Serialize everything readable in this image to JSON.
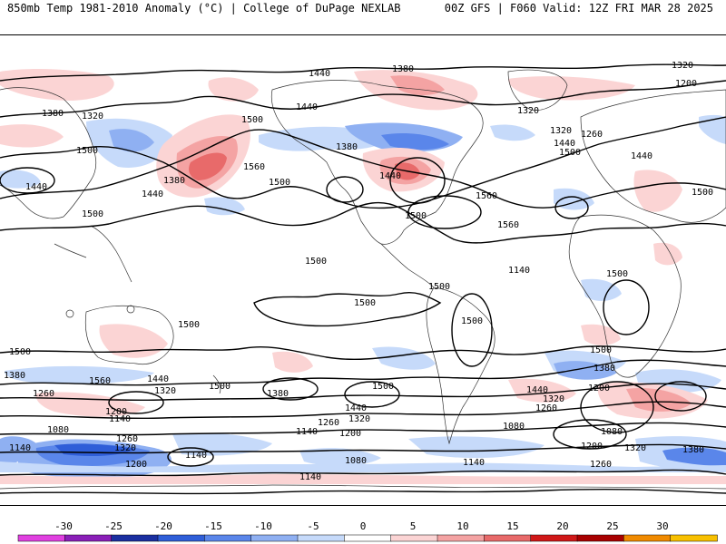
{
  "header": {
    "left_title": "850mb Temp 1981-2010 Anomaly (°C) | College of DuPage NEXLAB",
    "right_title": "00Z GFS | F060 Valid: 12Z FRI MAR 28 2025"
  },
  "colorbar": {
    "ticks": [
      "-30",
      "-25",
      "-20",
      "-15",
      "-10",
      "-5",
      "0",
      "5",
      "10",
      "15",
      "20",
      "25",
      "30"
    ],
    "colors": [
      "#e040e0",
      "#8a1fb8",
      "#1a2fa0",
      "#2f5ed8",
      "#5a86ea",
      "#8fb0f2",
      "#c6dafa",
      "#ffffff",
      "#fbd4d4",
      "#f4a3a3",
      "#e86a6a",
      "#d01818",
      "#a80000",
      "#f08a00",
      "#f8c000"
    ]
  },
  "contour_labels": {
    "l1440a": "1440",
    "l1380a": "1380",
    "l1320a": "1320",
    "l1380b": "1380",
    "l1500a": "1500",
    "l1440b": "1440",
    "l1380c": "1380",
    "l1440c": "1440",
    "l1500b": "1500",
    "l1560a": "1560",
    "l1500c": "1500",
    "l1500d": "1500",
    "l1440d": "1440",
    "l1380d": "1380",
    "l1320b": "1320",
    "l1440e": "1440",
    "l1500e": "1500",
    "l1560b": "1560",
    "l1560c": "1560",
    "l1320c": "1320",
    "l1260a": "1260",
    "l1440f": "1440",
    "l1500f": "1500",
    "l1500g": "1500",
    "l1320d": "1320",
    "l1200a": "1200",
    "l1500h": "1500",
    "l1500i": "1500",
    "l1500j": "1500",
    "l1500k": "1500",
    "l1500l": "1500",
    "l1500m": "1500",
    "l1500n": "1500",
    "l1380e": "1380",
    "l1560d": "1560",
    "l1440g": "1440",
    "l1320e": "1320",
    "l1260b": "1260",
    "l1200b": "1200",
    "l1140a": "1140",
    "l1500o": "1500",
    "l1380f": "1380",
    "l1440h": "1440",
    "l1320f": "1320",
    "l1260c": "1260",
    "l1140b": "1140",
    "l1200c": "1200",
    "l1500p": "1500",
    "l1440i": "1440",
    "l1320g": "1320",
    "l1260d": "1260",
    "l1080a": "1080",
    "l1140c": "1140",
    "l1500q": "1500",
    "l1380g": "1380",
    "l1200d": "1200",
    "l1080b": "1080",
    "l1320h": "1320",
    "l1260e": "1260",
    "l1200e": "1200",
    "l1380h": "1380",
    "l1080c": "1080",
    "l1140d": "1140",
    "l1260f": "1260",
    "l1320i": "1320",
    "l1200f": "1200",
    "l1140e": "1140",
    "l1080d": "1080",
    "l1140f": "1140",
    "l1140g": "1140"
  }
}
